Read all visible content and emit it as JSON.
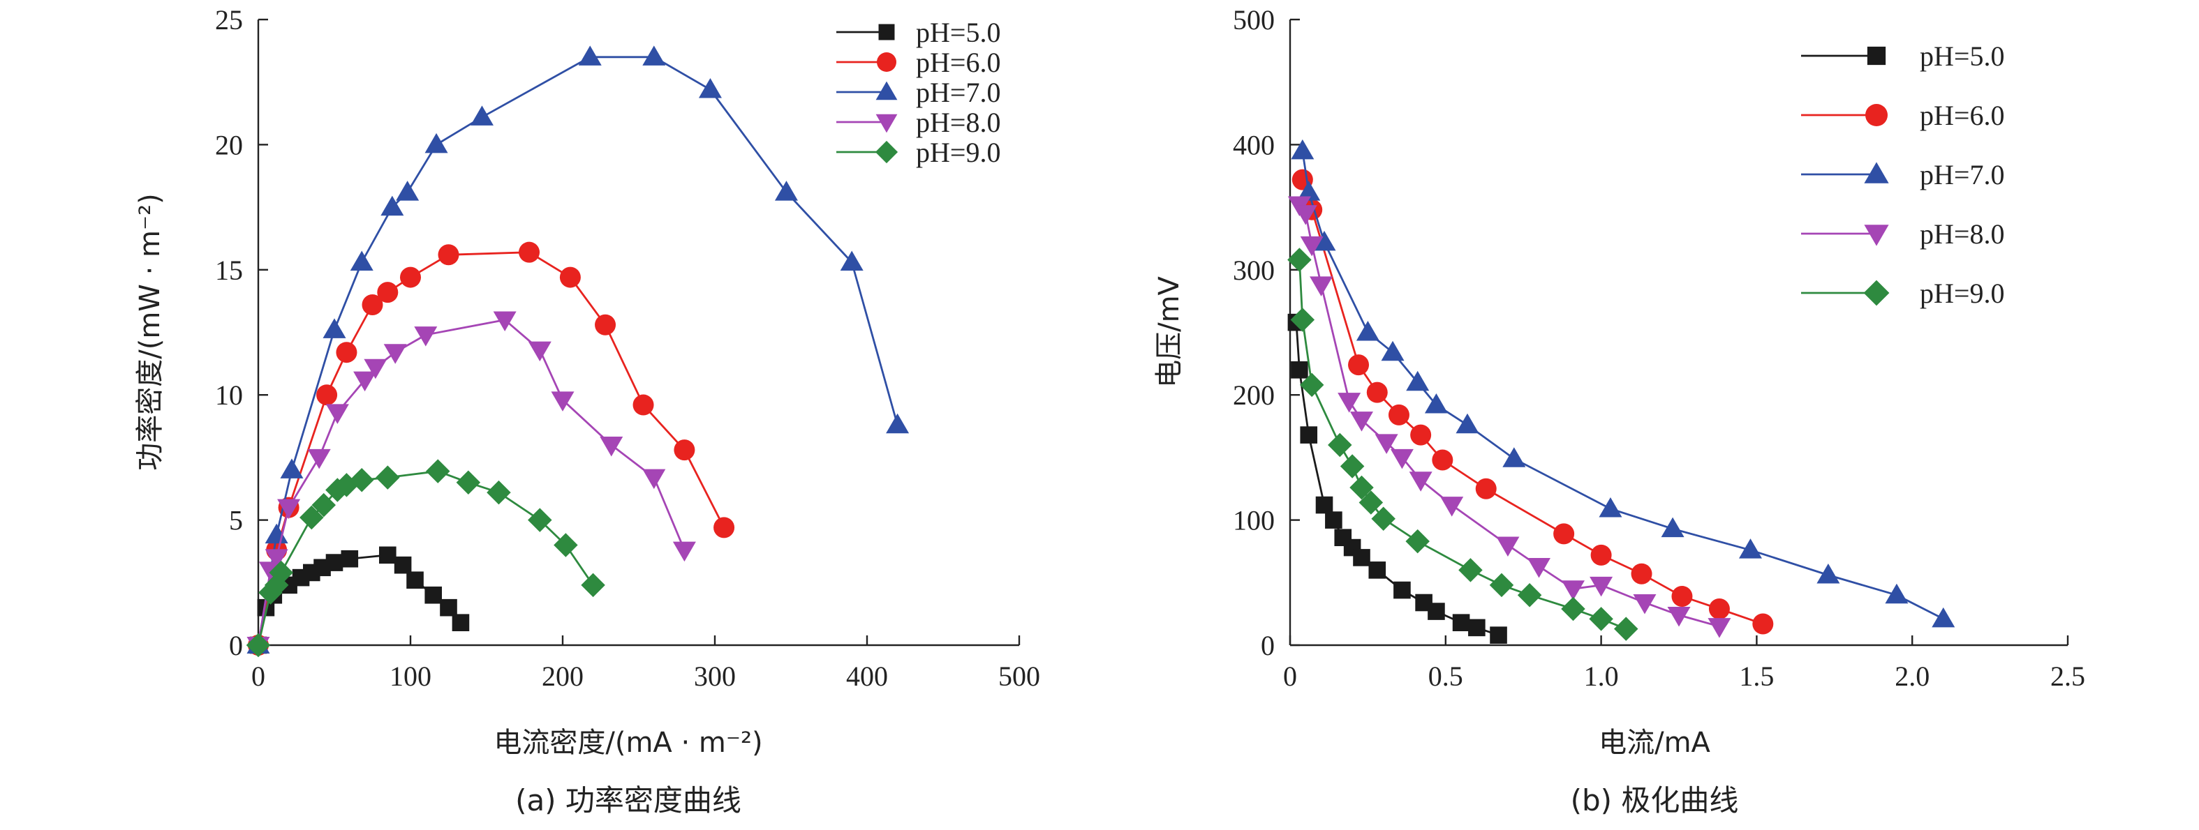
{
  "chart_data": [
    {
      "type": "line",
      "caption": "(a) 功率密度曲线",
      "xlabel": "电流密度/(mA · m⁻²)",
      "ylabel": "功率密度/(mW · m⁻²)",
      "xlim": [
        0,
        500
      ],
      "ylim": [
        0,
        25
      ],
      "xticks": [
        0,
        100,
        200,
        300,
        400,
        500
      ],
      "yticks": [
        0,
        5,
        10,
        15,
        20,
        25
      ],
      "legend_position": "top-right",
      "series": [
        {
          "name": "pH=5.0",
          "color": "#1a1a1a",
          "marker": "square",
          "x": [
            0,
            5,
            10,
            20,
            28,
            35,
            42,
            50,
            60,
            85,
            95,
            103,
            115,
            125,
            133
          ],
          "y": [
            0,
            1.5,
            2.0,
            2.4,
            2.7,
            2.9,
            3.1,
            3.3,
            3.45,
            3.6,
            3.2,
            2.6,
            2.0,
            1.5,
            0.9
          ]
        },
        {
          "name": "pH=6.0",
          "color": "#e8231f",
          "marker": "circle",
          "x": [
            0,
            12,
            20,
            45,
            58,
            75,
            85,
            100,
            125,
            178,
            205,
            228,
            253,
            280,
            306
          ],
          "y": [
            0,
            3.8,
            5.5,
            10.0,
            11.7,
            13.6,
            14.1,
            14.7,
            15.6,
            15.7,
            14.7,
            12.8,
            9.6,
            7.8,
            4.7
          ]
        },
        {
          "name": "pH=7.0",
          "color": "#2f4fa5",
          "marker": "triangle-up",
          "x": [
            0,
            12,
            22,
            50,
            68,
            88,
            98,
            117,
            147,
            218,
            260,
            297,
            347,
            390,
            420
          ],
          "y": [
            0,
            4.4,
            7.0,
            12.6,
            15.3,
            17.5,
            18.1,
            20.0,
            21.1,
            23.5,
            23.5,
            22.2,
            18.1,
            15.3,
            8.8
          ]
        },
        {
          "name": "pH=8.0",
          "color": "#a545b5",
          "marker": "triangle-down",
          "x": [
            0,
            8,
            12,
            20,
            40,
            52,
            70,
            77,
            90,
            110,
            162,
            185,
            200,
            232,
            260,
            280
          ],
          "y": [
            0,
            3.0,
            3.5,
            5.5,
            7.5,
            9.3,
            10.6,
            11.1,
            11.7,
            12.4,
            13.0,
            11.8,
            9.8,
            8.0,
            6.7,
            3.8
          ]
        },
        {
          "name": "pH=9.0",
          "color": "#2e8a3f",
          "marker": "diamond",
          "x": [
            0,
            8,
            12,
            15,
            35,
            43,
            52,
            58,
            68,
            85,
            118,
            138,
            158,
            185,
            202,
            220
          ],
          "y": [
            0,
            2.1,
            2.4,
            2.9,
            5.1,
            5.6,
            6.2,
            6.4,
            6.6,
            6.7,
            6.95,
            6.5,
            6.1,
            5.0,
            4.0,
            2.4
          ]
        }
      ]
    },
    {
      "type": "line",
      "caption": "(b) 极化曲线",
      "xlabel": "电流/mA",
      "ylabel": "电压/mV",
      "xlim": [
        0,
        2.5
      ],
      "ylim": [
        0,
        500
      ],
      "xticks": [
        "0",
        "0.5",
        "1.0",
        "1.5",
        "2.0",
        "2.5"
      ],
      "yticks": [
        0,
        100,
        200,
        300,
        400,
        500
      ],
      "legend_position": "top-right",
      "series": [
        {
          "name": "pH=5.0",
          "color": "#1a1a1a",
          "marker": "square",
          "x": [
            0.02,
            0.03,
            0.06,
            0.11,
            0.14,
            0.17,
            0.2,
            0.23,
            0.28,
            0.36,
            0.43,
            0.47,
            0.55,
            0.6,
            0.67
          ],
          "y": [
            258,
            220,
            168,
            112,
            100,
            86,
            78,
            70,
            60,
            44,
            34,
            27,
            18,
            14,
            8
          ]
        },
        {
          "name": "pH=6.0",
          "color": "#e8231f",
          "marker": "circle",
          "x": [
            0.04,
            0.07,
            0.22,
            0.28,
            0.35,
            0.42,
            0.49,
            0.63,
            0.88,
            1.0,
            1.13,
            1.26,
            1.38,
            1.52
          ],
          "y": [
            372,
            348,
            224,
            202,
            184,
            168,
            148,
            125,
            89,
            72,
            57,
            39,
            29,
            17
          ]
        },
        {
          "name": "pH=7.0",
          "color": "#2f4fa5",
          "marker": "triangle-up",
          "x": [
            0.04,
            0.06,
            0.11,
            0.25,
            0.33,
            0.41,
            0.47,
            0.57,
            0.72,
            1.03,
            1.23,
            1.48,
            1.73,
            1.95,
            2.1
          ],
          "y": [
            395,
            362,
            322,
            250,
            234,
            210,
            192,
            176,
            149,
            109,
            93,
            76,
            56,
            40,
            21
          ]
        },
        {
          "name": "pH=8.0",
          "color": "#a545b5",
          "marker": "triangle-down",
          "x": [
            0.03,
            0.05,
            0.07,
            0.1,
            0.19,
            0.23,
            0.31,
            0.36,
            0.42,
            0.52,
            0.7,
            0.8,
            0.91,
            1.0,
            1.14,
            1.25,
            1.38
          ],
          "y": [
            352,
            345,
            320,
            288,
            195,
            180,
            162,
            150,
            132,
            112,
            80,
            63,
            45,
            48,
            34,
            24,
            15
          ]
        },
        {
          "name": "pH=9.0",
          "color": "#2e8a3f",
          "marker": "diamond",
          "x": [
            0.03,
            0.04,
            0.07,
            0.16,
            0.2,
            0.23,
            0.26,
            0.3,
            0.41,
            0.58,
            0.68,
            0.77,
            0.91,
            1.0,
            1.08
          ],
          "y": [
            308,
            260,
            208,
            160,
            143,
            126,
            114,
            101,
            83,
            60,
            48,
            40,
            29,
            21,
            13
          ]
        }
      ]
    }
  ]
}
